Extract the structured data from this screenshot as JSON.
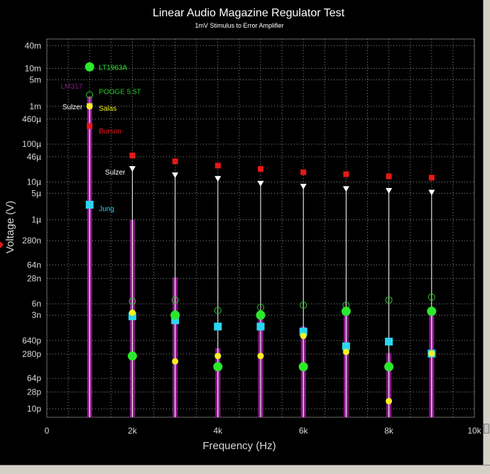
{
  "chart_data": {
    "type": "scatter",
    "title": "Linear Audio Magazine Regulator Test",
    "subtitle": "1mV Stimulus to Error Amplifier",
    "xlabel": "Frequency (Hz)",
    "ylabel": "Voltage (V)",
    "xlim": [
      0,
      10000
    ],
    "ylim": [
      6e-12,
      0.06
    ],
    "yscale": "log",
    "grid": true,
    "x_ticks": [
      {
        "value": 0,
        "label": "0"
      },
      {
        "value": 2000,
        "label": "2k"
      },
      {
        "value": 4000,
        "label": "4k"
      },
      {
        "value": 6000,
        "label": "6k"
      },
      {
        "value": 8000,
        "label": "8k"
      },
      {
        "value": 10000,
        "label": "10k"
      }
    ],
    "y_ticks": [
      {
        "value": 0.04,
        "label": "40m"
      },
      {
        "value": 0.01,
        "label": "10m"
      },
      {
        "value": 0.005,
        "label": "5m"
      },
      {
        "value": 0.001,
        "label": "1m"
      },
      {
        "value": 0.00046,
        "label": "460µ"
      },
      {
        "value": 0.0001,
        "label": "100µ"
      },
      {
        "value": 4.6e-05,
        "label": "46µ"
      },
      {
        "value": 1e-05,
        "label": "10µ"
      },
      {
        "value": 5e-06,
        "label": "5µ"
      },
      {
        "value": 1e-06,
        "label": "1µ"
      },
      {
        "value": 2.8e-07,
        "label": "280n"
      },
      {
        "value": 6.4e-08,
        "label": "64n"
      },
      {
        "value": 2.8e-08,
        "label": "28n"
      },
      {
        "value": 6e-09,
        "label": "6n"
      },
      {
        "value": 3e-09,
        "label": "3n"
      },
      {
        "value": 6.4e-10,
        "label": "640p"
      },
      {
        "value": 2.8e-10,
        "label": "280p"
      },
      {
        "value": 6.4e-11,
        "label": "64p"
      },
      {
        "value": 2.8e-11,
        "label": "28p"
      },
      {
        "value": 1e-11,
        "label": "10p"
      }
    ],
    "x": [
      1000,
      2000,
      3000,
      4000,
      5000,
      6000,
      7000,
      8000,
      9000
    ],
    "series": [
      {
        "name": "LM317",
        "style": "bar",
        "color": "#8a1a8a",
        "values": [
          0.0018,
          1e-06,
          3e-08,
          4e-10,
          3e-09,
          1.5e-09,
          3e-09,
          3e-10,
          3e-09
        ]
      },
      {
        "name": "Sulzer",
        "style": "triangle-down",
        "color": "#ffffff",
        "stem": true,
        "values": [
          0.001,
          2.2e-05,
          1.5e-05,
          1.2e-05,
          9e-06,
          7.5e-06,
          6.5e-06,
          5.8e-06,
          5.2e-06
        ]
      },
      {
        "name": "Burson",
        "style": "square-small",
        "color": "#e81818",
        "values": [
          0.0003,
          5e-05,
          3.5e-05,
          2.7e-05,
          2.2e-05,
          1.8e-05,
          1.6e-05,
          1.4e-05,
          1.3e-05
        ]
      },
      {
        "name": "POOGE 5.5T",
        "style": "circle-open",
        "color": "#28c828",
        "values": [
          0.002,
          7e-09,
          7.5e-09,
          4e-09,
          4.8e-09,
          5.5e-09,
          5.5e-09,
          7.5e-09,
          9e-09
        ]
      },
      {
        "name": "Jung",
        "style": "square",
        "color": "#2ad6f0",
        "values": [
          2.5e-06,
          2.8e-09,
          2.2e-09,
          1.5e-09,
          1.5e-09,
          1.1e-09,
          4.5e-10,
          6e-10,
          2.9e-10
        ]
      },
      {
        "name": "Salas",
        "style": "circle-small",
        "color": "#f4f01c",
        "values": [
          0.001,
          3.5e-09,
          1.8e-10,
          2.5e-10,
          2.5e-10,
          8.5e-10,
          3.2e-10,
          1.6e-11,
          2.9e-10
        ]
      },
      {
        "name": "LT1963A",
        "style": "circle",
        "color": "#2ce82c",
        "values": [
          0.011,
          2.5e-10,
          3e-09,
          1.3e-10,
          3e-09,
          1.3e-10,
          3.8e-09,
          1.3e-10,
          3.8e-09
        ]
      }
    ],
    "annotations": [
      {
        "text": "LT1963A",
        "color": "#2ce82c",
        "x": 1000,
        "y": 0.011,
        "side": "right"
      },
      {
        "text": "LM317",
        "color": "#8a1a8a",
        "x": 1000,
        "y": 0.0035,
        "side": "left"
      },
      {
        "text": "POOGE 5.5T",
        "color": "#28c828",
        "x": 1000,
        "y": 0.0025,
        "side": "right"
      },
      {
        "text": "Sulzer",
        "color": "#ffffff",
        "x": 1000,
        "y": 0.001,
        "side": "left"
      },
      {
        "text": "Salas",
        "color": "#f4f01c",
        "x": 1000,
        "y": 0.0009,
        "side": "right"
      },
      {
        "text": "Burson",
        "color": "#e81818",
        "x": 1000,
        "y": 0.00023,
        "side": "right"
      },
      {
        "text": "Sulzer",
        "color": "#ffffff",
        "x": 2000,
        "y": 1.85e-05,
        "side": "left"
      },
      {
        "text": "Jung",
        "color": "#2ad6f0",
        "x": 1000,
        "y": 2e-06,
        "side": "right"
      }
    ],
    "colors": {
      "background": "#000000",
      "grid": "#8a8a8a",
      "axis_text": "#d8d8d8",
      "title": "#ffffff"
    }
  }
}
